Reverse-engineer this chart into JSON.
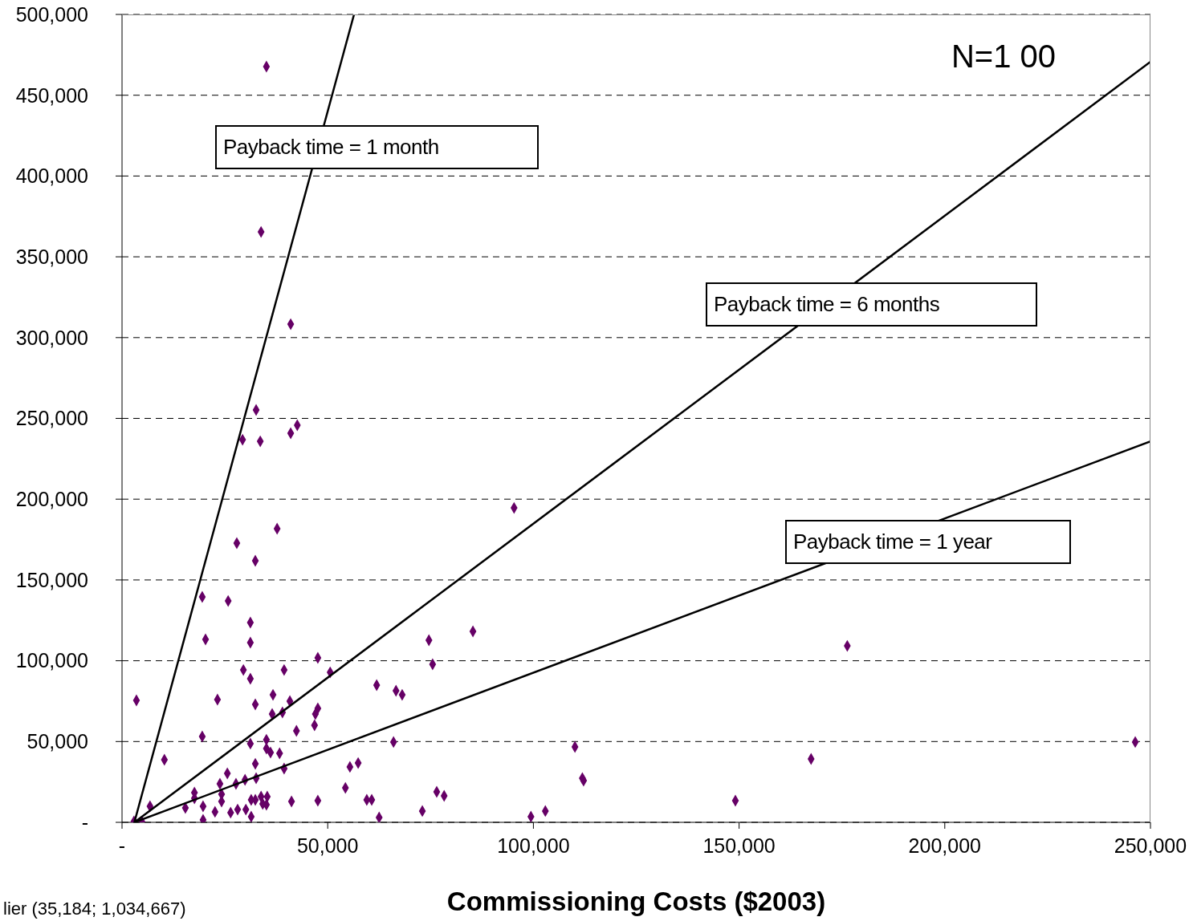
{
  "chart_data": {
    "type": "scatter",
    "xlabel": "Commissioning Costs ($2003)",
    "xlim": [
      0,
      250000
    ],
    "ylim": [
      0,
      500000
    ],
    "xticks": [
      {
        "value": 0,
        "label": "-"
      },
      {
        "value": 50000,
        "label": "50,000"
      },
      {
        "value": 100000,
        "label": "100,000"
      },
      {
        "value": 150000,
        "label": "150,000"
      },
      {
        "value": 200000,
        "label": "200,000"
      },
      {
        "value": 250000,
        "label": "250,000"
      }
    ],
    "yticks": [
      {
        "value": 0,
        "label": "-"
      },
      {
        "value": 50000,
        "label": "50,000"
      },
      {
        "value": 100000,
        "label": "100,000"
      },
      {
        "value": 150000,
        "label": "150,000"
      },
      {
        "value": 200000,
        "label": "200,000"
      },
      {
        "value": 250000,
        "label": "250,000"
      },
      {
        "value": 300000,
        "label": "300,000"
      },
      {
        "value": 350000,
        "label": "350,000"
      },
      {
        "value": 400000,
        "label": "400,000"
      },
      {
        "value": 450000,
        "label": "450,000"
      },
      {
        "value": 500000,
        "label": "500,000"
      }
    ],
    "grid": "y",
    "annotations": [
      "N=1 00",
      "lier (35,184; 1,034,667)",
      "Payback time = 1 month",
      "Payback time = 6 months",
      "Payback time = 1 year"
    ],
    "series": [
      {
        "color": "#660066",
        "marker": "diamond",
        "x": [
          35100,
          33800,
          41000,
          32600,
          29300,
          33600,
          41000,
          42600,
          95300,
          37700,
          27900,
          32400,
          19500,
          25800,
          31200,
          20300,
          31200,
          74600,
          85300,
          176300,
          75500,
          47600,
          29500,
          31200,
          39400,
          50600,
          61900,
          66600,
          68100,
          3500,
          23200,
          32400,
          36700,
          40800,
          36500,
          39000,
          47600,
          47000,
          46800,
          42400,
          19500,
          31200,
          35100,
          66000,
          246300,
          110100,
          35100,
          36100,
          38300,
          10300,
          167500,
          32400,
          39400,
          25600,
          55400,
          57400,
          112200,
          111900,
          23800,
          27700,
          29900,
          32600,
          17600,
          17600,
          24200,
          24200,
          54300,
          76500,
          78300,
          60700,
          32400,
          33800,
          35300,
          35100,
          31400,
          34200,
          41200,
          47600,
          149100,
          59500,
          6800,
          15400,
          19700,
          22600,
          26400,
          28100,
          30100,
          31400,
          19700,
          2900,
          4900,
          62500,
          73000,
          99400,
          102900
        ],
        "values": [
          467700,
          365400,
          308300,
          255200,
          236800,
          235800,
          240800,
          245800,
          194600,
          181700,
          172800,
          161900,
          139500,
          137000,
          123600,
          113200,
          111200,
          112700,
          118200,
          109200,
          97800,
          101800,
          94300,
          88900,
          94300,
          92800,
          84900,
          81400,
          78900,
          75500,
          76000,
          73000,
          78900,
          75000,
          67000,
          68000,
          70500,
          67000,
          60100,
          56600,
          53100,
          48700,
          51100,
          49700,
          49700,
          46700,
          45700,
          43200,
          42700,
          38700,
          39200,
          36200,
          33300,
          30300,
          34300,
          36700,
          25800,
          27300,
          23800,
          23800,
          26300,
          27300,
          18400,
          14900,
          17400,
          12900,
          21300,
          18900,
          16400,
          13900,
          13900,
          15900,
          15900,
          10900,
          13900,
          11400,
          12900,
          13400,
          13400,
          13900,
          9900,
          8900,
          9900,
          6500,
          6000,
          7900,
          7900,
          3500,
          1500,
          500,
          0,
          3000,
          7000,
          3500,
          7000
        ]
      },
      {
        "type": "line",
        "color": "#000000",
        "marker": "none",
        "line_style": "solid",
        "x": [
          3000,
          56400
        ],
        "values": [
          0,
          500000
        ]
      },
      {
        "type": "line",
        "color": "#000000",
        "marker": "none",
        "line_style": "solid",
        "x": [
          3000,
          250000
        ],
        "values": [
          0,
          470700
        ]
      },
      {
        "type": "line",
        "color": "#000000",
        "marker": "none",
        "line_style": "solid",
        "x": [
          3000,
          250000
        ],
        "values": [
          0,
          235800
        ]
      }
    ]
  }
}
